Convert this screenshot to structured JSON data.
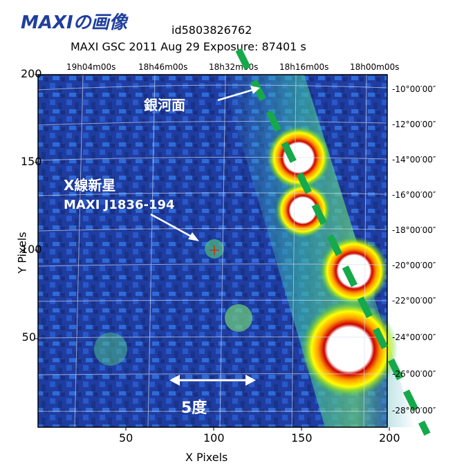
{
  "header": {
    "title": "MAXIの画像",
    "obs_id": "id5803826762",
    "obs_info": "MAXI GSC   2011 Aug 29    Exposure: 87401 s"
  },
  "axes": {
    "xlabel": "X Pixels",
    "ylabel": "Y Pixels",
    "xticks": [
      "50",
      "100",
      "150",
      "200"
    ],
    "yticks": [
      "200",
      "150",
      "100",
      "50"
    ],
    "ra_ticks": [
      "19h04m00s",
      "18h46m00s",
      "18h32m00s",
      "18h16m00s",
      "18h00m00s"
    ],
    "dec_ticks": [
      "-10°00′00″",
      "-12°00′00″",
      "-14°00′00″",
      "-16°00′00″",
      "-18°00′00″",
      "-20°00′00″",
      "-22°00′00″",
      "-24°00′00″",
      "-26°00′00″",
      "-28°00′00″"
    ]
  },
  "annotations": {
    "galactic_plane": "銀河面",
    "nova_line1": "X線新星",
    "nova_line2": "MAXI J1836-194",
    "scale": "5度"
  },
  "colors": {
    "background_blue": "#1d3a9c",
    "plane_green": "#16a94b"
  }
}
